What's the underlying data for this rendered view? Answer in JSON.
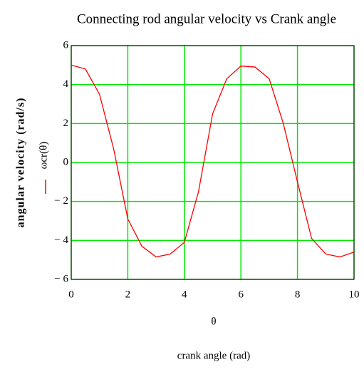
{
  "chart_data": {
    "type": "line",
    "title": "Connecting rod angular velocity vs Crank angle",
    "x_label": "crank angle (rad)",
    "x_variable": "θ",
    "y_label": "angular velocity (rad/s)",
    "x": [
      0,
      0.5,
      1,
      1.5,
      2,
      2.5,
      3,
      3.5,
      4,
      4.5,
      5,
      5.5,
      6,
      6.5,
      7,
      7.5,
      8,
      8.5,
      9,
      9.5,
      10
    ],
    "series": [
      {
        "name": "ωcr(θ)",
        "color": "#ff0000",
        "values": [
          5,
          4.8,
          3.5,
          0.7,
          -2.9,
          -4.3,
          -4.85,
          -4.7,
          -4.1,
          -1.5,
          2.5,
          4.3,
          4.95,
          4.9,
          4.3,
          2.0,
          -1.0,
          -3.9,
          -4.7,
          -4.85,
          -4.6
        ]
      }
    ],
    "xlim": [
      0,
      10
    ],
    "xticks": [
      0,
      2,
      4,
      6,
      8,
      10
    ],
    "ylim": [
      -6,
      6
    ],
    "yticks": [
      {
        "value": -6,
        "label": "− 6"
      },
      {
        "value": -4,
        "label": "− 4"
      },
      {
        "value": -2,
        "label": "− 2"
      },
      0,
      2,
      4,
      6
    ],
    "grid": true,
    "grid_color": "#00e600"
  }
}
